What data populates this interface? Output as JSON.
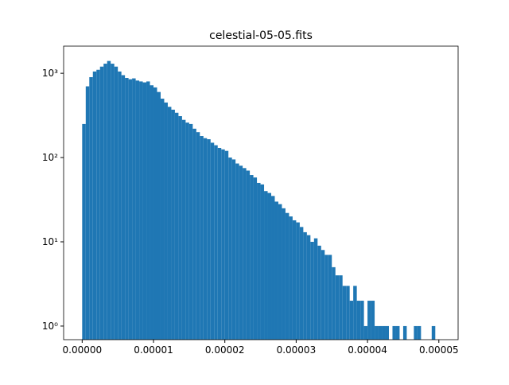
{
  "chart_data": {
    "type": "histogram",
    "title": "celestial-05-05.fits",
    "bins": [
      0,
      5e-07,
      1e-06,
      1.5e-06,
      2e-06,
      2.5e-06,
      3e-06,
      3.5e-06,
      4e-06,
      4.5e-06,
      5e-06,
      5.5e-06,
      6e-06,
      6.5e-06,
      7e-06,
      7.5e-06,
      8e-06,
      8.5e-06,
      9e-06,
      9.5e-06,
      1e-05,
      1.05e-05,
      1.1e-05,
      1.15e-05,
      1.2e-05,
      1.25e-05,
      1.3e-05,
      1.35e-05,
      1.4e-05,
      1.45e-05,
      1.5e-05,
      1.55e-05,
      1.6e-05,
      1.65e-05,
      1.7e-05,
      1.75e-05,
      1.8e-05,
      1.85e-05,
      1.9e-05,
      1.95e-05,
      2e-05,
      2.05e-05,
      2.1e-05,
      2.15e-05,
      2.2e-05,
      2.25e-05,
      2.3e-05,
      2.35e-05,
      2.4e-05,
      2.45e-05,
      2.5e-05,
      2.55e-05,
      2.6e-05,
      2.65e-05,
      2.7e-05,
      2.75e-05,
      2.8e-05,
      2.85e-05,
      2.9e-05,
      2.95e-05,
      3e-05,
      3.05e-05,
      3.1e-05,
      3.15e-05,
      3.2e-05,
      3.25e-05,
      3.3e-05,
      3.35e-05,
      3.4e-05,
      3.45e-05,
      3.5e-05,
      3.55e-05,
      3.6e-05,
      3.65e-05,
      3.7e-05,
      3.75e-05,
      3.8e-05,
      3.85e-05,
      3.9e-05,
      3.95e-05,
      4e-05,
      4.05e-05,
      4.1e-05,
      4.15e-05,
      4.2e-05,
      4.25e-05,
      4.3e-05,
      4.35e-05,
      4.4e-05,
      4.45e-05,
      4.5e-05,
      4.55e-05,
      4.6e-05,
      4.65e-05,
      4.7e-05,
      4.75e-05,
      4.8e-05,
      4.85e-05,
      4.9e-05,
      4.95e-05,
      5e-05
    ],
    "values": [
      250,
      700,
      900,
      1050,
      1100,
      1200,
      1300,
      1400,
      1300,
      1200,
      1050,
      950,
      880,
      850,
      870,
      820,
      800,
      780,
      800,
      720,
      680,
      600,
      500,
      450,
      400,
      370,
      340,
      310,
      280,
      260,
      250,
      220,
      200,
      180,
      170,
      165,
      150,
      140,
      130,
      125,
      120,
      100,
      95,
      85,
      80,
      75,
      70,
      62,
      58,
      50,
      48,
      40,
      38,
      35,
      30,
      28,
      25,
      22,
      20,
      18,
      17,
      15,
      13,
      12,
      10,
      11,
      9,
      8,
      7,
      7,
      5,
      4,
      4,
      3,
      3,
      2,
      3,
      2,
      2,
      1,
      2,
      2,
      1,
      1,
      1,
      1,
      0,
      1,
      1,
      0,
      1,
      0,
      0,
      1,
      1,
      0,
      0,
      0,
      1,
      0
    ],
    "color": "#1f77b4",
    "log_y": true,
    "xlim": [
      -2.6e-06,
      5.27e-05
    ],
    "ylim": [
      0.69,
      2100
    ],
    "xticks": [
      {
        "value": 0,
        "label": "0.00000"
      },
      {
        "value": 1e-05,
        "label": "0.00001"
      },
      {
        "value": 2e-05,
        "label": "0.00002"
      },
      {
        "value": 3e-05,
        "label": "0.00003"
      },
      {
        "value": 4e-05,
        "label": "0.00004"
      },
      {
        "value": 5e-05,
        "label": "0.00005"
      }
    ],
    "yticks": [
      {
        "value": 1,
        "label": "10⁰"
      },
      {
        "value": 10,
        "label": "10¹"
      },
      {
        "value": 100,
        "label": "10²"
      },
      {
        "value": 1000,
        "label": "10³"
      }
    ]
  }
}
